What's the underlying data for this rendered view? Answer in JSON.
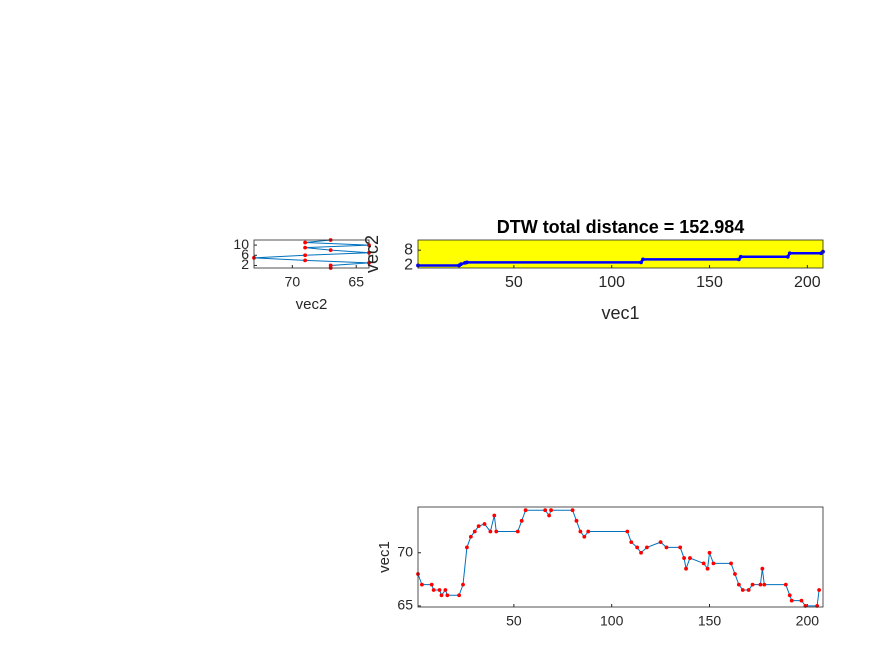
{
  "chart_data": [
    {
      "type": "line",
      "xlabel": "vec2",
      "xreverse": true,
      "x": [
        67,
        67,
        64,
        69,
        73,
        69,
        64,
        67,
        69,
        64,
        69,
        67
      ],
      "values": [
        1,
        2,
        3,
        4,
        5,
        6,
        7,
        8,
        9,
        10,
        11,
        12
      ],
      "line_color": "#0072bd",
      "marker_color": "#ff0000",
      "xlim": [
        73,
        64
      ],
      "xticks": [
        65,
        70
      ],
      "ylim": [
        1,
        12
      ],
      "yticks": [
        2,
        6,
        10
      ]
    },
    {
      "type": "line",
      "title": "DTW total distance = 152.984",
      "xlabel": "vec1",
      "ylabel": "vec2",
      "x": [
        1,
        22,
        23,
        25,
        26,
        115,
        116,
        165,
        166,
        190,
        191,
        207,
        208
      ],
      "values": [
        2,
        2,
        2.5,
        3,
        3.2,
        3.2,
        4.4,
        4.4,
        5.4,
        5.4,
        6.8,
        6.8,
        7.4
      ],
      "line_color": "#0000ff",
      "marker_color": "#0000ff",
      "background": "#ffff00",
      "xlim": [
        1,
        208
      ],
      "xticks": [
        50,
        100,
        150,
        200
      ],
      "ylim": [
        1,
        12
      ],
      "yticks": [
        2,
        8
      ]
    },
    {
      "type": "line",
      "ylabel": "vec1",
      "x": [
        1,
        3,
        8,
        9,
        12,
        13,
        15,
        16,
        22,
        24,
        26,
        28,
        30,
        32,
        35,
        38,
        40,
        41,
        52,
        54,
        56,
        66,
        68,
        69,
        80,
        82,
        84,
        86,
        88,
        108,
        110,
        113,
        115,
        118,
        125,
        128,
        135,
        137,
        138,
        140,
        147,
        149,
        150,
        152,
        161,
        163,
        165,
        167,
        170,
        172,
        176,
        177,
        178,
        189,
        191,
        192,
        197,
        199,
        205,
        206
      ],
      "values": [
        68,
        67,
        67,
        66.5,
        66.5,
        66,
        66.5,
        66,
        66,
        67,
        70.5,
        71.5,
        72,
        72.5,
        72.7,
        72,
        73.5,
        72,
        72,
        73,
        74,
        74,
        73.5,
        74,
        74,
        73,
        72,
        71.5,
        72,
        72,
        71,
        70.5,
        70,
        70.5,
        71,
        70.5,
        70.5,
        69.5,
        68.5,
        69.5,
        69,
        68.5,
        70,
        69,
        69,
        68,
        67,
        66.5,
        66.5,
        67,
        67,
        68.5,
        67,
        67,
        66,
        65.5,
        65.5,
        65,
        65,
        66.5
      ],
      "line_color": "#0072bd",
      "marker_color": "#ff0000",
      "xlim": [
        1,
        208
      ],
      "xticks": [
        50,
        100,
        150,
        200
      ],
      "ylim": [
        64.9,
        74.3
      ],
      "yticks": [
        65,
        70
      ]
    }
  ]
}
